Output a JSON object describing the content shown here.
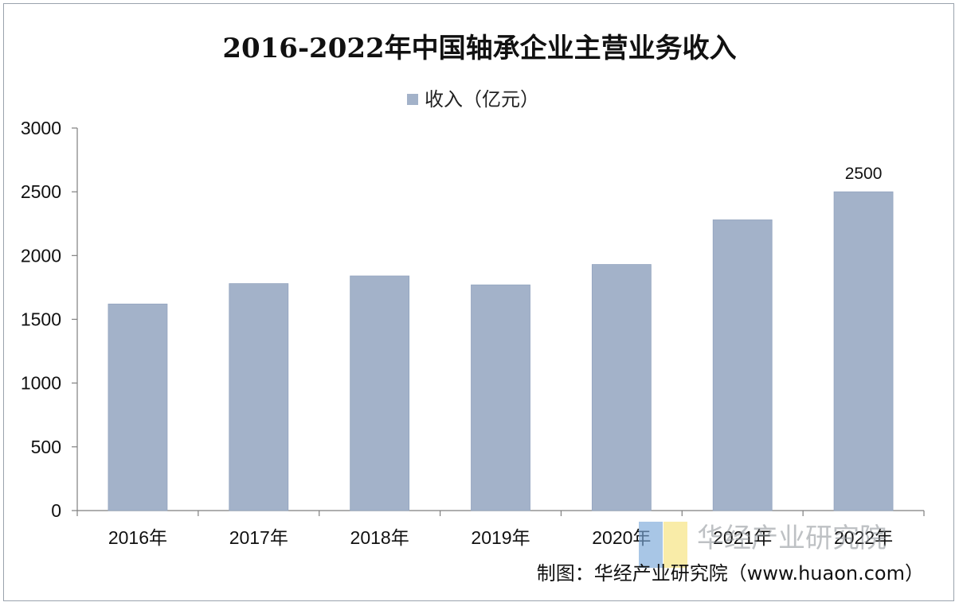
{
  "chart_data": {
    "type": "bar",
    "title": "2016-2022年中国轴承企业主营业务收入",
    "categories": [
      "2016年",
      "2017年",
      "2018年",
      "2019年",
      "2020年",
      "2021年",
      "2022年"
    ],
    "series": [
      {
        "name": "收入（亿元）",
        "values": [
          1620,
          1780,
          1840,
          1770,
          1930,
          2280,
          2500
        ],
        "color": "#a3b2c9"
      }
    ],
    "data_labels": [
      {
        "category": "2022年",
        "text": "2500"
      }
    ],
    "yticks": [
      "0",
      "500",
      "1000",
      "1500",
      "2000",
      "2500",
      "3000"
    ],
    "ylim": [
      0,
      3000
    ],
    "xlabel": "",
    "ylabel": "",
    "grid": false,
    "legend_position": "top-center"
  },
  "watermark": {
    "text": "华经产业研究院",
    "colors": [
      "#7aa7d9",
      "#f6e27a"
    ]
  },
  "source": {
    "text": "制图：华经产业研究院（www.huaon.com）"
  },
  "colors": {
    "axis": "#7f7f7f",
    "bar": "#a3b2c9"
  }
}
